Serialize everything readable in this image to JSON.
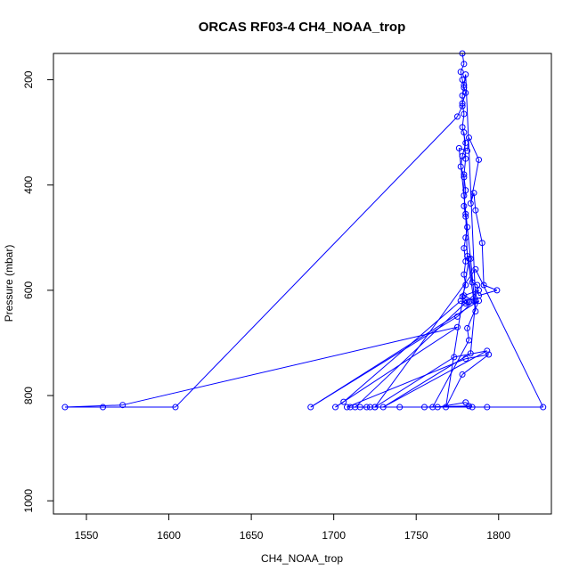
{
  "chart_data": {
    "type": "line",
    "title": "ORCAS RF03-4 CH4_NOAA_trop",
    "xlabel": "CH4_NOAA_trop",
    "ylabel": "Pressure (mbar)",
    "xlim": [
      1530,
      1832
    ],
    "ylim": [
      1025,
      150
    ],
    "y_reversed": true,
    "x_ticks": [
      1550,
      1600,
      1650,
      1700,
      1750,
      1800
    ],
    "y_ticks": [
      200,
      400,
      600,
      800,
      1000
    ],
    "grid": false,
    "legend": "none",
    "marker": "open-circle",
    "series": [
      {
        "color": "#0000ff",
        "points": [
          [
            1778,
            150
          ],
          [
            1779,
            170
          ],
          [
            1777,
            185
          ],
          [
            1778,
            200
          ],
          [
            1779,
            215
          ],
          [
            1780,
            225
          ],
          [
            1778,
            245
          ],
          [
            1779,
            265
          ],
          [
            1778,
            290
          ],
          [
            1780,
            320
          ],
          [
            1778,
            345
          ],
          [
            1777,
            365
          ],
          [
            1779,
            385
          ],
          [
            1780,
            410
          ],
          [
            1779,
            440
          ],
          [
            1780,
            460
          ],
          [
            1781,
            480
          ],
          [
            1780,
            500
          ],
          [
            1779,
            520
          ],
          [
            1780,
            545
          ],
          [
            1779,
            570
          ],
          [
            1780,
            590
          ],
          [
            1778,
            612
          ],
          [
            1781,
            622
          ],
          [
            1782,
            622
          ],
          [
            1780,
            625
          ],
          [
            1777,
            620
          ],
          [
            1706,
            812
          ],
          [
            1701,
            822
          ],
          [
            1775,
            670
          ],
          [
            1572,
            818
          ],
          [
            1537,
            822
          ],
          [
            1560,
            822
          ],
          [
            1604,
            822
          ],
          [
            1775,
            270
          ],
          [
            1778,
            250
          ],
          [
            1778,
            230
          ],
          [
            1779,
            210
          ],
          [
            1780,
            190
          ],
          [
            1786,
            620
          ],
          [
            1783,
            720
          ],
          [
            1730,
            822
          ],
          [
            1793,
            715
          ],
          [
            1773,
            727
          ],
          [
            1725,
            822
          ],
          [
            1713,
            822
          ],
          [
            1788,
            600
          ],
          [
            1779,
            610
          ],
          [
            1785,
            620
          ],
          [
            1775,
            650
          ],
          [
            1686,
            822
          ],
          [
            1788,
            620
          ],
          [
            1781,
            672
          ],
          [
            1782,
            695
          ],
          [
            1760,
            822
          ],
          [
            1782,
            820
          ],
          [
            1755,
            822
          ],
          [
            1763,
            822
          ],
          [
            1780,
            813
          ],
          [
            1784,
            822
          ],
          [
            1793,
            822
          ],
          [
            1740,
            822
          ],
          [
            1725,
            822
          ],
          [
            1786,
            560
          ],
          [
            1827,
            822
          ],
          [
            1720,
            822
          ],
          [
            1710,
            822
          ],
          [
            1716,
            822
          ],
          [
            1722,
            822
          ],
          [
            1708,
            822
          ],
          [
            1780,
            730
          ],
          [
            1794,
            722
          ],
          [
            1778,
            760
          ],
          [
            1768,
            822
          ],
          [
            1782,
            540
          ],
          [
            1784,
            585
          ],
          [
            1787,
            590
          ],
          [
            1788,
            610
          ],
          [
            1799,
            600
          ],
          [
            1791,
            590
          ],
          [
            1790,
            510
          ],
          [
            1786,
            448
          ],
          [
            1785,
            415
          ],
          [
            1783,
            435
          ],
          [
            1788,
            352
          ],
          [
            1782,
            310
          ],
          [
            1781,
            335
          ],
          [
            1776,
            330
          ],
          [
            1783,
            540
          ],
          [
            1786,
            640
          ],
          [
            1781,
            535
          ],
          [
            1780,
            455
          ],
          [
            1779,
            420
          ],
          [
            1779,
            380
          ],
          [
            1780,
            350
          ],
          [
            1779,
            300
          ]
        ]
      }
    ]
  }
}
